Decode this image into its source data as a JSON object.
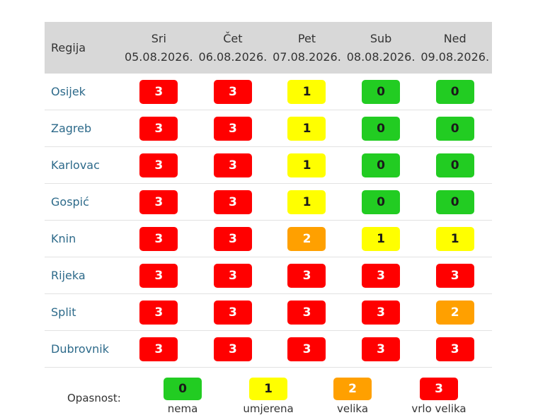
{
  "header": {
    "region_label": "Regija",
    "days": [
      {
        "day": "Sri",
        "date": "05.08.2026."
      },
      {
        "day": "Čet",
        "date": "06.08.2026."
      },
      {
        "day": "Pet",
        "date": "07.08.2026."
      },
      {
        "day": "Sub",
        "date": "08.08.2026."
      },
      {
        "day": "Ned",
        "date": "09.08.2026."
      }
    ]
  },
  "rows": [
    {
      "region": "Osijek",
      "levels": [
        3,
        3,
        1,
        0,
        0
      ]
    },
    {
      "region": "Zagreb",
      "levels": [
        3,
        3,
        1,
        0,
        0
      ]
    },
    {
      "region": "Karlovac",
      "levels": [
        3,
        3,
        1,
        0,
        0
      ]
    },
    {
      "region": "Gospić",
      "levels": [
        3,
        3,
        1,
        0,
        0
      ]
    },
    {
      "region": "Knin",
      "levels": [
        3,
        3,
        2,
        1,
        1
      ]
    },
    {
      "region": "Rijeka",
      "levels": [
        3,
        3,
        3,
        3,
        3
      ]
    },
    {
      "region": "Split",
      "levels": [
        3,
        3,
        3,
        3,
        2
      ]
    },
    {
      "region": "Dubrovnik",
      "levels": [
        3,
        3,
        3,
        3,
        3
      ]
    }
  ],
  "legend": {
    "label": "Opasnost:",
    "items": [
      {
        "level": 0,
        "text": "nema"
      },
      {
        "level": 1,
        "text": "umjerena"
      },
      {
        "level": 2,
        "text": "velika"
      },
      {
        "level": 3,
        "text": "vrlo velika"
      }
    ]
  },
  "colors": {
    "level_0": "#22cc22",
    "level_1": "#ffff00",
    "level_2": "#ffa000",
    "level_3": "#ff0000"
  }
}
